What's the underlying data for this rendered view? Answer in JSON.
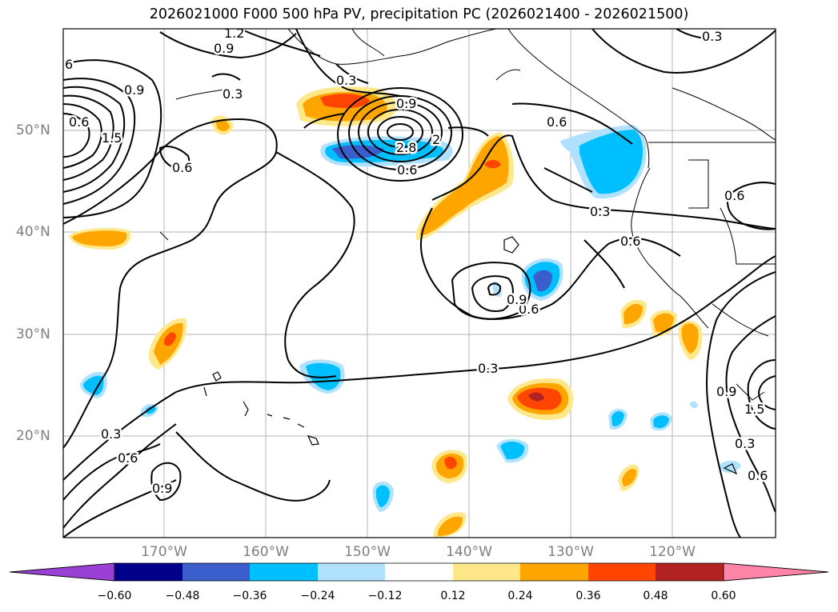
{
  "title": "2026021000 F000 500 hPa PV, precipitation PC (2026021400 - 2026021500)",
  "latitude_labels": [
    "50°N",
    "40°N",
    "30°N",
    "20°N"
  ],
  "longitude_labels": [
    "170°W",
    "160°W",
    "150°W",
    "140°W",
    "130°W",
    "120°W"
  ],
  "contour_labels": [
    "1.2",
    "0.9",
    "0.3",
    "0.9",
    "0.3",
    "0.6",
    "0.6",
    "0.3",
    "0.9",
    "2.8",
    "0.6",
    "0.6",
    "1.5",
    "0.6",
    "0.3",
    "0.6",
    "0.9",
    "0.6",
    "0.3",
    "0.3",
    "0.6",
    "0.9",
    "0.9",
    "1.5",
    "0.3",
    "0.6",
    "6",
    "2"
  ],
  "colorbar": {
    "ticks": [
      "−0.60",
      "−0.48",
      "−0.36",
      "−0.24",
      "−0.12",
      "0.12",
      "0.24",
      "0.36",
      "0.48",
      "0.60"
    ],
    "colors": {
      "under": "#9b40d4",
      "n060": "#00008b",
      "n048": "#3a5fcd",
      "n036": "#00bfff",
      "n024": "#b0e2ff",
      "neutral": "#ffffff",
      "p012": "#fee88a",
      "p024": "#ffa500",
      "p036": "#ff4500",
      "p048": "#b22222",
      "over": "#ff85a8"
    }
  }
}
